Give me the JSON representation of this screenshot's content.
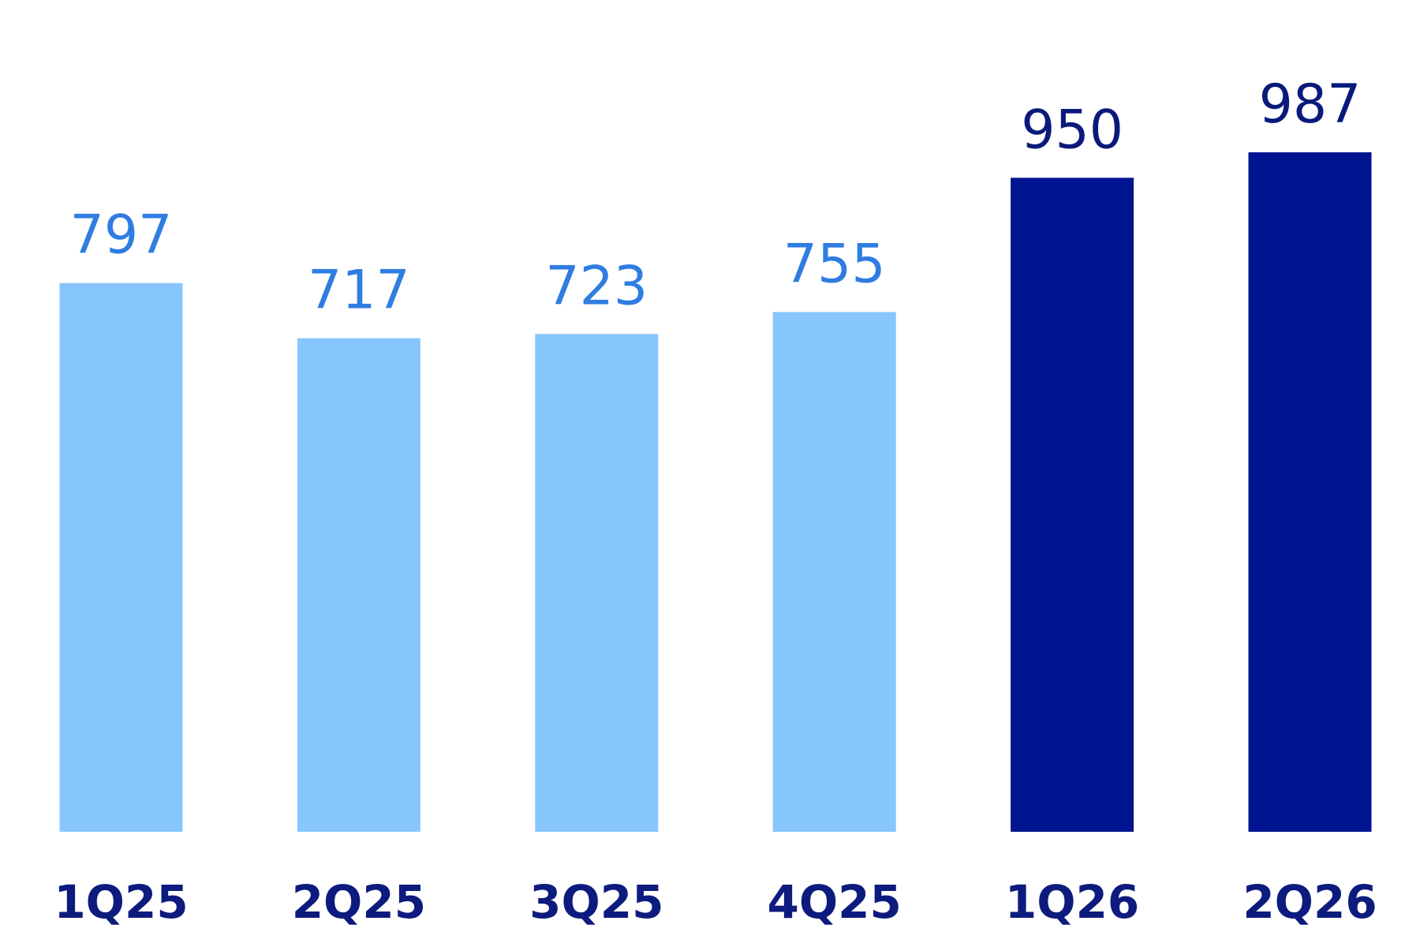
{
  "chart_data": {
    "type": "bar",
    "categories": [
      "1Q25",
      "2Q25",
      "3Q25",
      "4Q25",
      "1Q26",
      "2Q26"
    ],
    "values": [
      797,
      717,
      723,
      755,
      950,
      987
    ],
    "colors": [
      "#87c6fc",
      "#87c6fc",
      "#87c6fc",
      "#87c6fc",
      "#001591",
      "#001591"
    ],
    "label_colors": [
      "#2f7de1",
      "#2f7de1",
      "#2f7de1",
      "#2f7de1",
      "#0a1a7a",
      "#0a1a7a"
    ],
    "category_color": "#0d1b7e"
  }
}
